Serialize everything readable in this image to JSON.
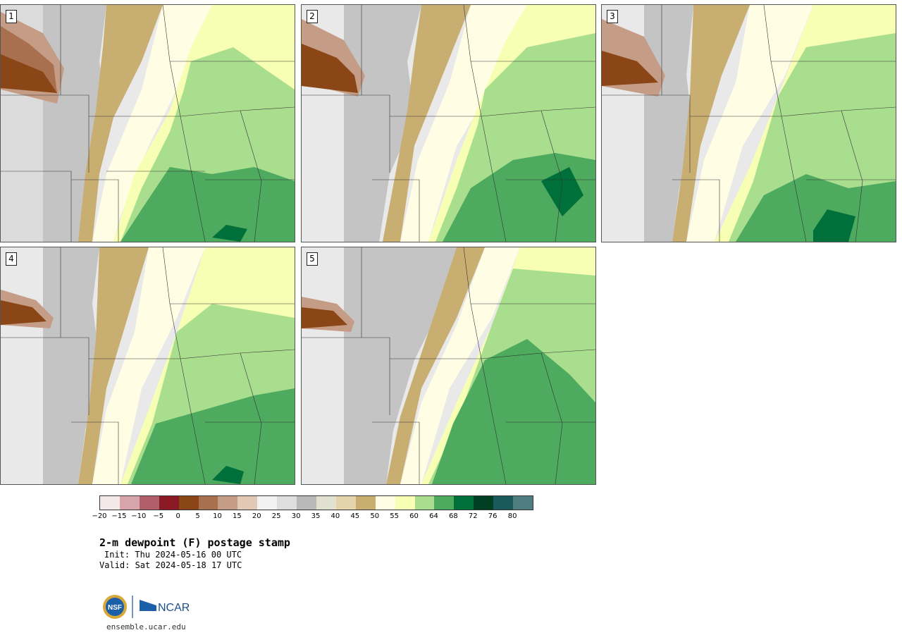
{
  "panels": [
    {
      "label": "1"
    },
    {
      "label": "2"
    },
    {
      "label": "3"
    },
    {
      "label": "4"
    },
    {
      "label": "5"
    }
  ],
  "colorbar": {
    "colors": [
      "#f3e9ea",
      "#d8a5ad",
      "#b15f6b",
      "#8b1a24",
      "#8a4617",
      "#a8704f",
      "#c59c85",
      "#e2c9b6",
      "#f2f2f2",
      "#dedede",
      "#b9b9b9",
      "#e1e1d2",
      "#e4d3ab",
      "#c9ae72",
      "#fffde4",
      "#f6ffb3",
      "#aade8f",
      "#4daa5e",
      "#00703a",
      "#013f22",
      "#1b5a5b",
      "#4f7c7f"
    ],
    "tick_labels": [
      "−20",
      "−15",
      "−10",
      "−5",
      "0",
      "5",
      "10",
      "15",
      "20",
      "25",
      "30",
      "35",
      "40",
      "45",
      "50",
      "55",
      "60",
      "64",
      "68",
      "72",
      "76",
      "80"
    ]
  },
  "title": "2-m dewpoint (F) postage stamp",
  "init": "Init: Thu 2024-05-16 00 UTC",
  "valid": "Valid: Sat 2024-05-18 17 UTC",
  "logos": {
    "nsf": "NSF",
    "ncar": "NCAR"
  },
  "site": "ensemble.ucar.edu"
}
